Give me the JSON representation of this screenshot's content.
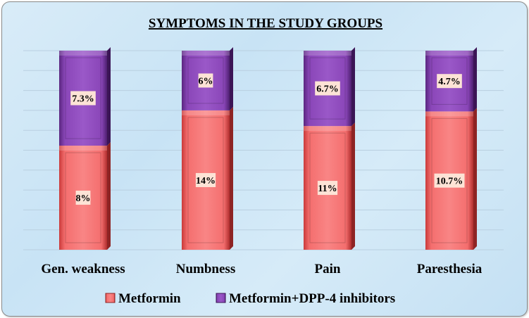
{
  "chart_data": {
    "type": "bar",
    "stacked": "percent",
    "title": "SYMPTOMS IN THE STUDY GROUPS",
    "categories": [
      "Gen. weakness",
      "Numbness",
      "Pain",
      "Paresthesia"
    ],
    "series": [
      {
        "name": "Metformin",
        "values": [
          8,
          14,
          11,
          10.7
        ],
        "labels": [
          "8%",
          "14%",
          "11%",
          "10.7%"
        ],
        "color": "#f26d6d"
      },
      {
        "name": "Metformin+DPP-4 inhibitors",
        "values": [
          7.3,
          6,
          6.7,
          4.7
        ],
        "labels": [
          "7.3%",
          "6%",
          "6.7%",
          "4.7%"
        ],
        "color": "#8a46b8"
      }
    ],
    "xlabel": "",
    "ylabel": "",
    "grid": true,
    "legend": "bottom"
  }
}
